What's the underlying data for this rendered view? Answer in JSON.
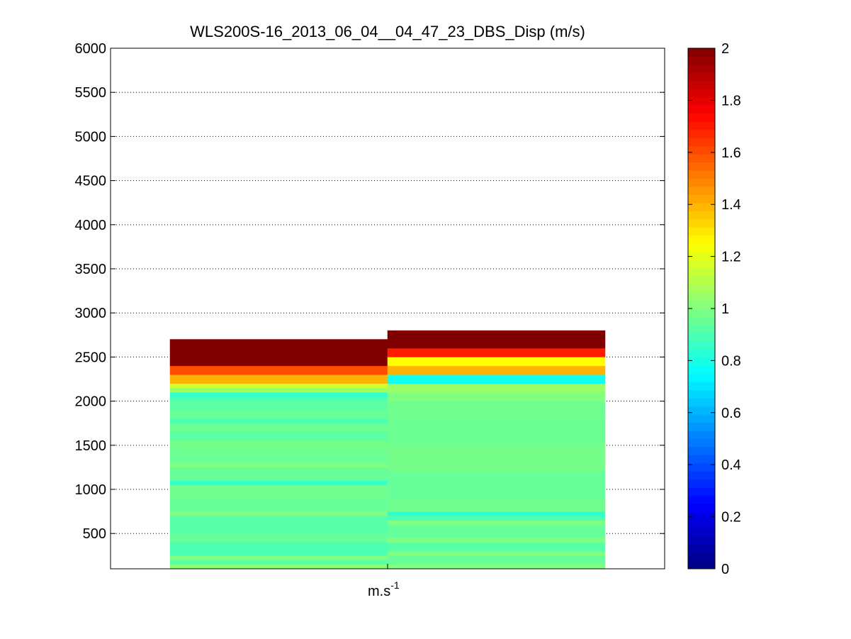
{
  "figure": {
    "background": "#ffffff"
  },
  "chart_data": {
    "type": "heatmap",
    "title": "WLS200S-16_2013_06_04__04_47_23_DBS_Disp (m/s)",
    "xlabel": "m.s",
    "xlabel_superscript": "-1",
    "ylabel": "",
    "ylim": [
      100,
      6000
    ],
    "yticks": [
      500,
      1000,
      1500,
      2000,
      2500,
      3000,
      3500,
      4000,
      4500,
      5000,
      5500,
      6000
    ],
    "grid": "y-dotted",
    "colormap": "jet",
    "clim": [
      0,
      2
    ],
    "colorbar_ticks": [
      0,
      0.2,
      0.4,
      0.6,
      0.8,
      1,
      1.2,
      1.4,
      1.6,
      1.8,
      2
    ],
    "columns": [
      {
        "index": 1,
        "cells": [
          {
            "y0": 100,
            "y1": 150,
            "value": 1.02
          },
          {
            "y0": 150,
            "y1": 200,
            "value": 0.92
          },
          {
            "y0": 200,
            "y1": 250,
            "value": 1.0
          },
          {
            "y0": 250,
            "y1": 400,
            "value": 0.9
          },
          {
            "y0": 400,
            "y1": 500,
            "value": 0.95
          },
          {
            "y0": 500,
            "y1": 700,
            "value": 0.92
          },
          {
            "y0": 700,
            "y1": 750,
            "value": 1.0
          },
          {
            "y0": 750,
            "y1": 900,
            "value": 0.95
          },
          {
            "y0": 900,
            "y1": 1050,
            "value": 0.97
          },
          {
            "y0": 1050,
            "y1": 1100,
            "value": 0.85
          },
          {
            "y0": 1100,
            "y1": 1250,
            "value": 0.95
          },
          {
            "y0": 1250,
            "y1": 1300,
            "value": 1.0
          },
          {
            "y0": 1300,
            "y1": 1450,
            "value": 0.96
          },
          {
            "y0": 1450,
            "y1": 1550,
            "value": 0.98
          },
          {
            "y0": 1550,
            "y1": 1650,
            "value": 0.93
          },
          {
            "y0": 1650,
            "y1": 1750,
            "value": 0.96
          },
          {
            "y0": 1750,
            "y1": 1800,
            "value": 0.9
          },
          {
            "y0": 1800,
            "y1": 1900,
            "value": 0.95
          },
          {
            "y0": 1900,
            "y1": 2000,
            "value": 0.93
          },
          {
            "y0": 2000,
            "y1": 2050,
            "value": 0.9
          },
          {
            "y0": 2050,
            "y1": 2100,
            "value": 0.85
          },
          {
            "y0": 2100,
            "y1": 2150,
            "value": 1.05
          },
          {
            "y0": 2150,
            "y1": 2200,
            "value": 1.15
          },
          {
            "y0": 2200,
            "y1": 2300,
            "value": 1.4
          },
          {
            "y0": 2300,
            "y1": 2400,
            "value": 1.6
          },
          {
            "y0": 2400,
            "y1": 2700,
            "value": 2.0
          }
        ]
      },
      {
        "index": 2,
        "cells": [
          {
            "y0": 100,
            "y1": 150,
            "value": 1.0
          },
          {
            "y0": 150,
            "y1": 250,
            "value": 0.95
          },
          {
            "y0": 250,
            "y1": 300,
            "value": 1.0
          },
          {
            "y0": 300,
            "y1": 400,
            "value": 0.92
          },
          {
            "y0": 400,
            "y1": 450,
            "value": 1.0
          },
          {
            "y0": 450,
            "y1": 600,
            "value": 0.95
          },
          {
            "y0": 600,
            "y1": 650,
            "value": 1.0
          },
          {
            "y0": 650,
            "y1": 700,
            "value": 0.9
          },
          {
            "y0": 700,
            "y1": 750,
            "value": 0.85
          },
          {
            "y0": 750,
            "y1": 900,
            "value": 0.97
          },
          {
            "y0": 900,
            "y1": 1200,
            "value": 0.95
          },
          {
            "y0": 1200,
            "y1": 1500,
            "value": 0.98
          },
          {
            "y0": 1500,
            "y1": 1800,
            "value": 0.96
          },
          {
            "y0": 1800,
            "y1": 2000,
            "value": 0.97
          },
          {
            "y0": 2000,
            "y1": 2100,
            "value": 1.0
          },
          {
            "y0": 2100,
            "y1": 2200,
            "value": 1.05
          },
          {
            "y0": 2200,
            "y1": 2300,
            "value": 0.78
          },
          {
            "y0": 2300,
            "y1": 2400,
            "value": 1.4
          },
          {
            "y0": 2400,
            "y1": 2500,
            "value": 1.25
          },
          {
            "y0": 2500,
            "y1": 2600,
            "value": 1.7
          },
          {
            "y0": 2600,
            "y1": 2800,
            "value": 2.0
          }
        ]
      }
    ]
  }
}
